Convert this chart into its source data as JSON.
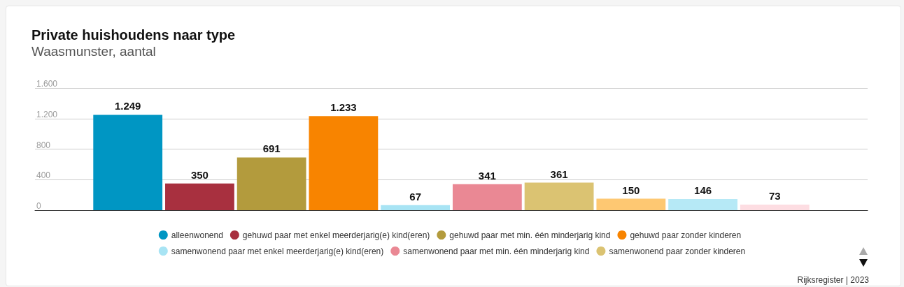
{
  "chart_data": {
    "type": "bar",
    "title": "Private huishoudens naar type",
    "subtitle": "Waasmunster, aantal",
    "categories": [
      null
    ],
    "series": [
      {
        "name": "alleenwonend",
        "color": "#0096c3",
        "values": [
          1249
        ],
        "value_labels": [
          "1.249"
        ]
      },
      {
        "name": "gehuwd paar met enkel meerderjarig(e) kind(eren)",
        "color": "#a8303f",
        "values": [
          350
        ],
        "value_labels": [
          "350"
        ]
      },
      {
        "name": "gehuwd paar met min. één minderjarig kind",
        "color": "#b39b3d",
        "values": [
          691
        ],
        "value_labels": [
          "691"
        ]
      },
      {
        "name": "gehuwd paar zonder kinderen",
        "color": "#f88400",
        "values": [
          1233
        ],
        "value_labels": [
          "1.233"
        ]
      },
      {
        "name": "samenwonend paar met enkel meerderjarig(e) kind(eren)",
        "color": "#a8e4f4",
        "values": [
          67
        ],
        "value_labels": [
          "67"
        ]
      },
      {
        "name": "samenwonend paar met min. één minderjarig kind",
        "color": "#ea8894",
        "values": [
          341
        ],
        "value_labels": [
          "341"
        ]
      },
      {
        "name": "samenwonend paar zonder kinderen",
        "color": "#dbc372",
        "values": [
          361
        ],
        "value_labels": [
          "361"
        ]
      },
      {
        "color": "#fec872",
        "values": [
          150
        ],
        "value_labels": [
          "150"
        ]
      },
      {
        "color": "#b6e9f6",
        "values": [
          146
        ],
        "value_labels": [
          "146"
        ]
      },
      {
        "color": "#fddde2",
        "values": [
          73
        ],
        "value_labels": [
          "73"
        ]
      }
    ],
    "ylim": [
      0,
      1600
    ],
    "yticks": [
      0,
      {
        "value": 400,
        "label": "400"
      },
      {
        "value": 800,
        "label": "800"
      },
      {
        "value": 1200,
        "label": "1.200"
      },
      {
        "value": 1600,
        "label": "1.600"
      }
    ],
    "grid": "y",
    "legend": "bottom",
    "annotations": [
      "Rijksregister | 2023"
    ]
  }
}
